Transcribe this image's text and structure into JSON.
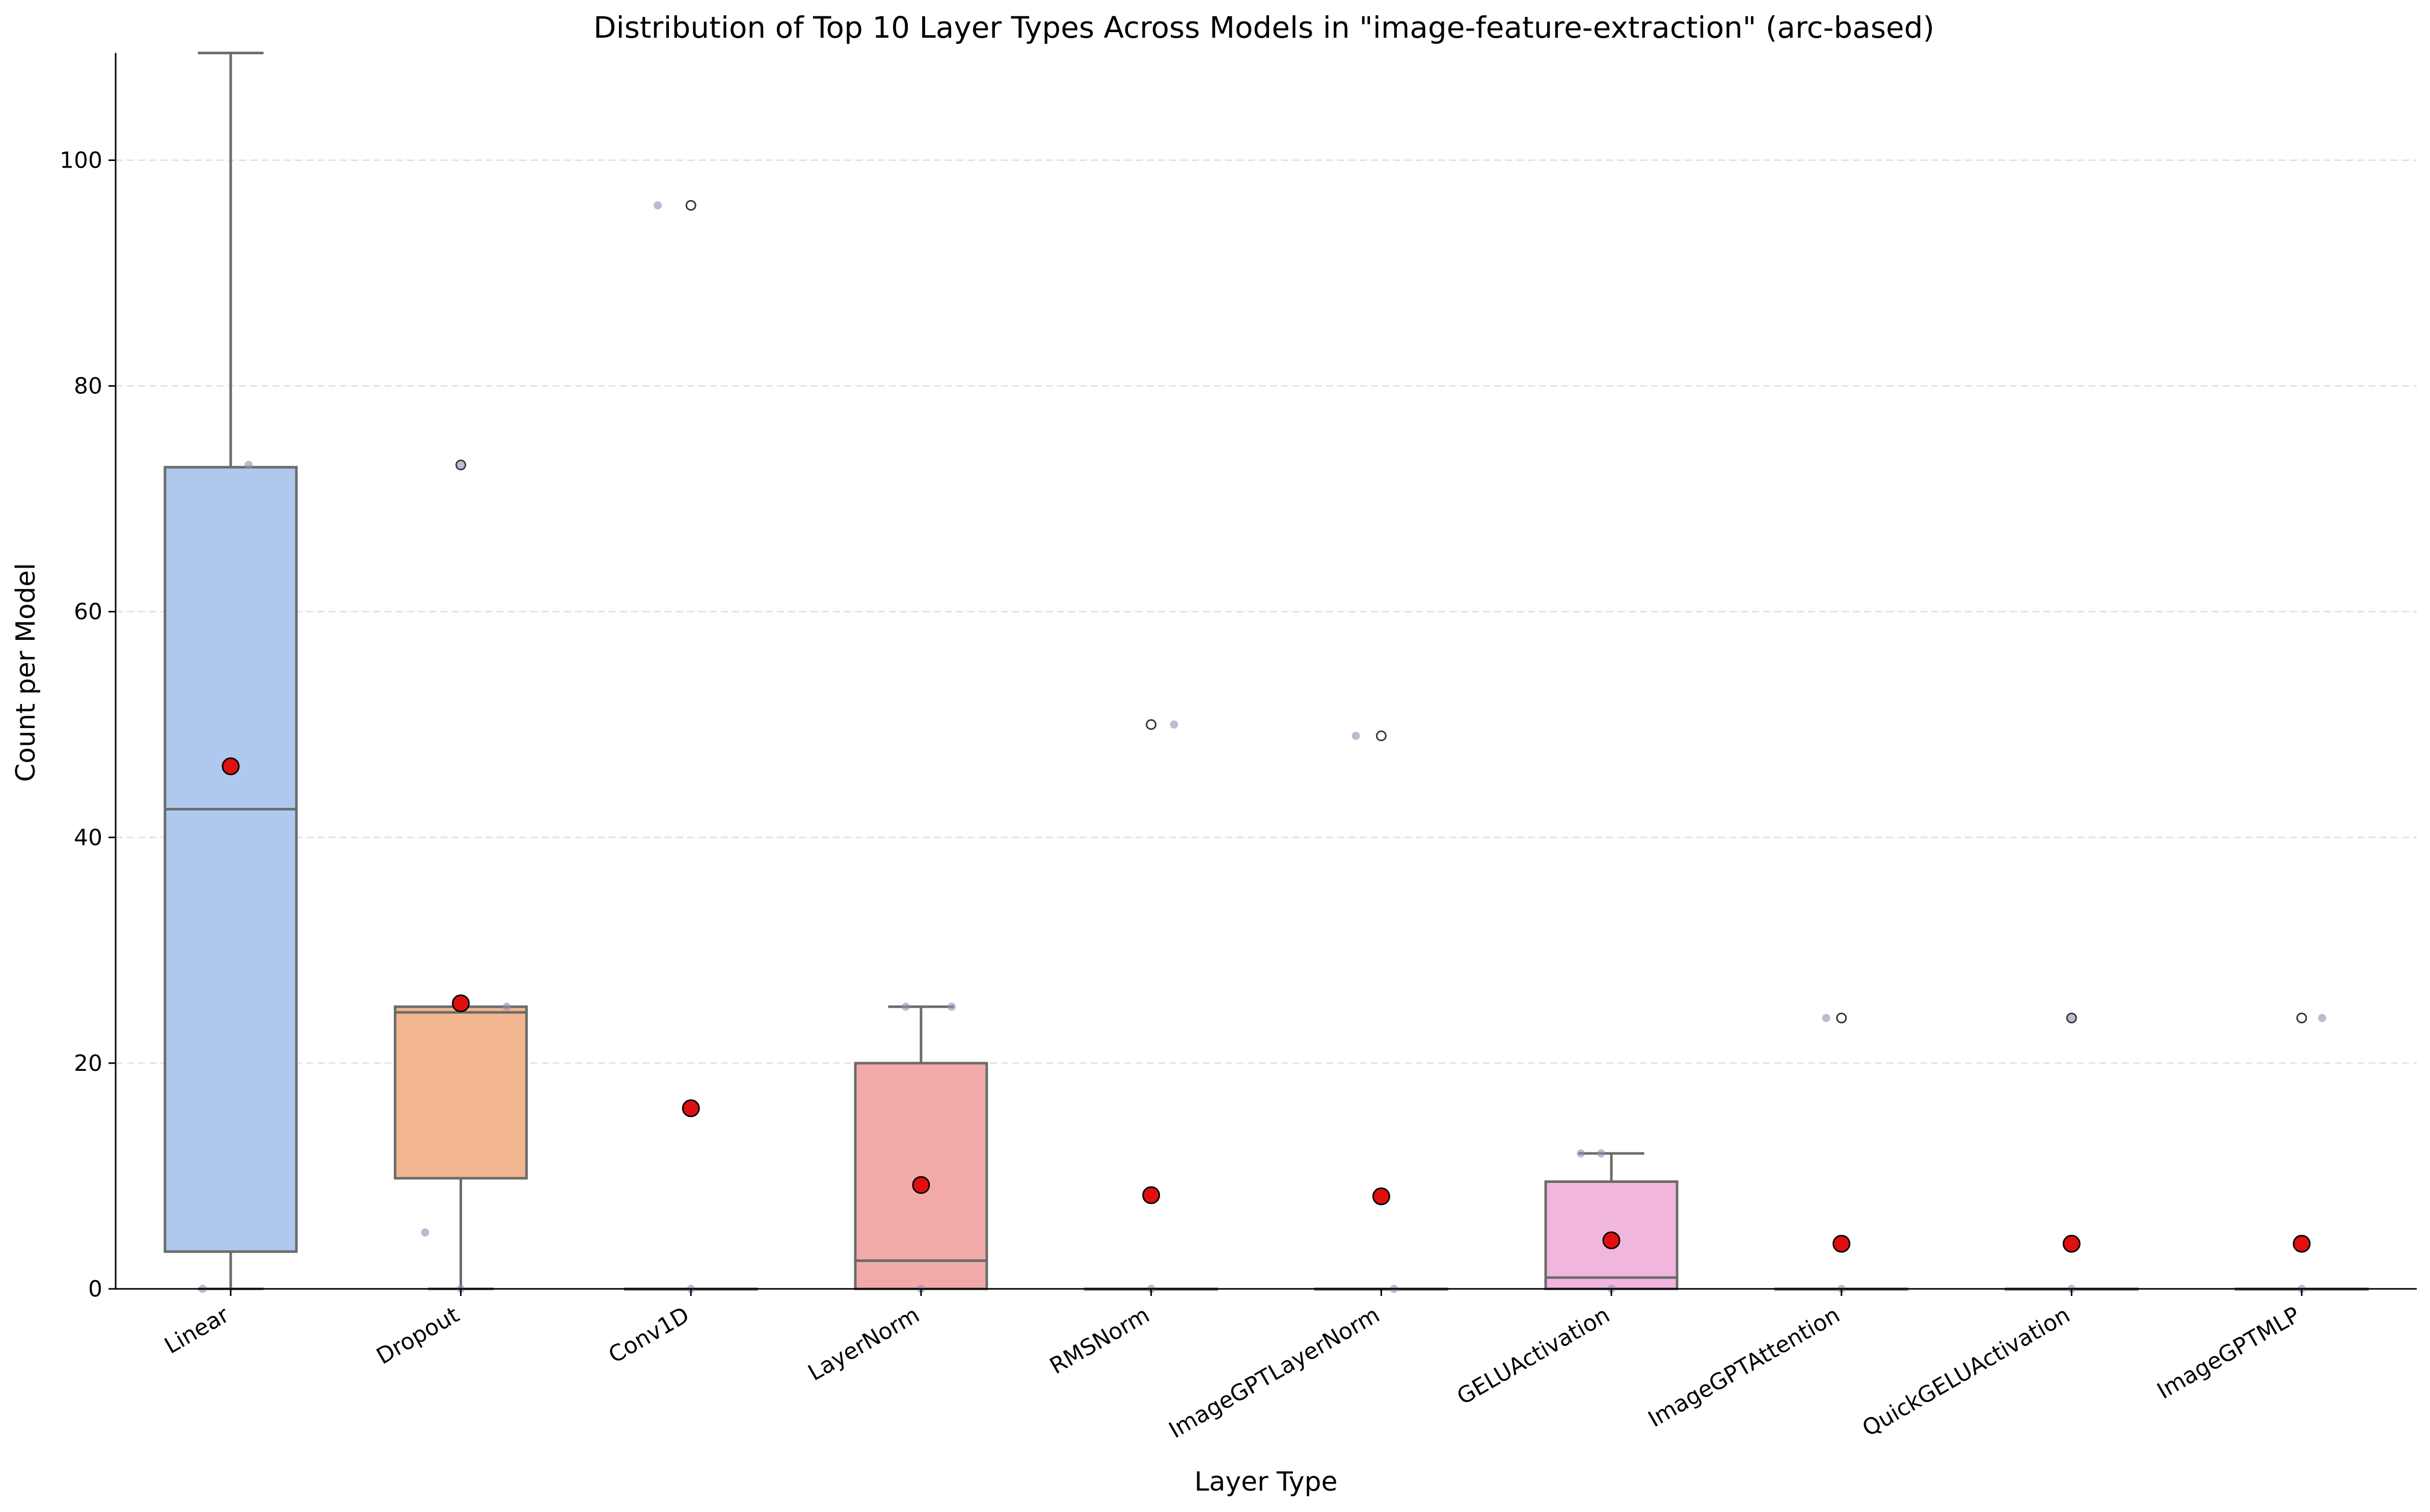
{
  "chart_data": {
    "type": "box",
    "title": "Distribution of Top 10 Layer Types Across Models in \"image-feature-extraction\" (arc-based)",
    "xlabel": "Layer Type",
    "ylabel": "Count per Model",
    "ylim": [
      0,
      109.5
    ],
    "yticks": [
      0,
      20,
      40,
      60,
      80,
      100
    ],
    "grid": "horizontal dashed",
    "mean_marker": "red dot",
    "categories": [
      "Linear",
      "Dropout",
      "Conv1D",
      "LayerNorm",
      "RMSNorm",
      "ImageGPTLayerNorm",
      "GELUActivation",
      "ImageGPTAttention",
      "QuickGELUActivation",
      "ImageGPTMLP"
    ],
    "colors": [
      "#aec9ed",
      "#f1b68f",
      "#a5d6a7",
      "#f2aaa8",
      "#cdb8e0",
      "#c8a79c",
      "#f0b6de",
      "#cccccc",
      "#d9d88a",
      "#a6dde6"
    ],
    "boxes": [
      {
        "category": "Linear",
        "min": 0,
        "q1": 3.3,
        "median": 42.5,
        "q3": 72.8,
        "max": 109.5,
        "mean": 46.3,
        "outliers": []
      },
      {
        "category": "Dropout",
        "min": 0,
        "q1": 9.8,
        "median": 24.5,
        "q3": 25,
        "max": 25,
        "mean": 25.3,
        "outliers": [
          73
        ]
      },
      {
        "category": "Conv1D",
        "min": 0,
        "q1": 0,
        "median": 0,
        "q3": 0,
        "max": 0,
        "mean": 16,
        "outliers": [
          96
        ]
      },
      {
        "category": "LayerNorm",
        "min": 0,
        "q1": 0,
        "median": 2.5,
        "q3": 20,
        "max": 25,
        "mean": 9.2,
        "outliers": []
      },
      {
        "category": "RMSNorm",
        "min": 0,
        "q1": 0,
        "median": 0,
        "q3": 0,
        "max": 0,
        "mean": 8.3,
        "outliers": [
          50
        ]
      },
      {
        "category": "ImageGPTLayerNorm",
        "min": 0,
        "q1": 0,
        "median": 0,
        "q3": 0,
        "max": 0,
        "mean": 8.2,
        "outliers": [
          49
        ]
      },
      {
        "category": "GELUActivation",
        "min": 0,
        "q1": 0,
        "median": 1,
        "q3": 9.5,
        "max": 12,
        "mean": 4.3,
        "outliers": []
      },
      {
        "category": "ImageGPTAttention",
        "min": 0,
        "q1": 0,
        "median": 0,
        "q3": 0,
        "max": 0,
        "mean": 4,
        "outliers": [
          24
        ]
      },
      {
        "category": "QuickGELUActivation",
        "min": 0,
        "q1": 0,
        "median": 0,
        "q3": 0,
        "max": 0,
        "mean": 4,
        "outliers": [
          24
        ]
      },
      {
        "category": "ImageGPTMLP",
        "min": 0,
        "q1": 0,
        "median": 0,
        "q3": 0,
        "max": 0,
        "mean": 4,
        "outliers": [
          24
        ]
      }
    ],
    "points": [
      {
        "category": "Linear",
        "values": [
          73,
          0
        ]
      },
      {
        "category": "Dropout",
        "values": [
          73,
          25,
          5,
          0
        ]
      },
      {
        "category": "Conv1D",
        "values": [
          96,
          0
        ]
      },
      {
        "category": "LayerNorm",
        "values": [
          25,
          25,
          0
        ]
      },
      {
        "category": "RMSNorm",
        "values": [
          50,
          0
        ]
      },
      {
        "category": "ImageGPTLayerNorm",
        "values": [
          49,
          0
        ]
      },
      {
        "category": "GELUActivation",
        "values": [
          12,
          12,
          0
        ]
      },
      {
        "category": "ImageGPTAttention",
        "values": [
          24,
          0
        ]
      },
      {
        "category": "QuickGELUActivation",
        "values": [
          24,
          0
        ]
      },
      {
        "category": "ImageGPTMLP",
        "values": [
          24,
          0
        ]
      }
    ]
  }
}
